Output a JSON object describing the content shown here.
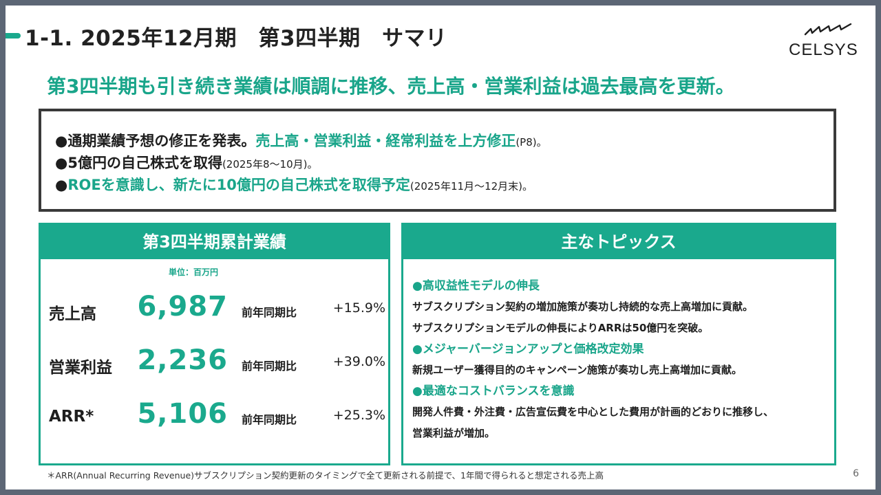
{
  "header": {
    "title": "1-1. 2025年12月期　第3四半期　サマリ",
    "logo_text": "CELSYS"
  },
  "headline": "第3四半期も引き続き業績は順調に推移、売上高・営業利益は過去最高を更新。",
  "notices": [
    {
      "bullet": "●",
      "black": "通期業績予想の修正を発表。",
      "green": "売上高・営業利益・経常利益を上方修正",
      "small": "(P8)。"
    },
    {
      "bullet": "●",
      "black": "5億円の自己株式を取得",
      "green": "",
      "small": "(2025年8～10月)。"
    },
    {
      "bullet": "●",
      "black": "",
      "green": "ROEを意識し、新たに10億円の自己株式を取得予定",
      "small": "(2025年11月～12月末)。"
    }
  ],
  "results": {
    "header": "第3四半期累計業績",
    "unit": "単位：百万円",
    "metrics": [
      {
        "label": "売上高",
        "value": "6,987",
        "comparison": "前年同期比",
        "change": "+15.9%"
      },
      {
        "label": "営業利益",
        "value": "2,236",
        "comparison": "前年同期比",
        "change": "+39.0%"
      },
      {
        "label": "ARR*",
        "value": "5,106",
        "comparison": "前年同期比",
        "change": "+25.3%"
      }
    ]
  },
  "topics": {
    "header": "主なトピックス",
    "items": [
      {
        "title": "●高収益性モデルの伸長",
        "lines": [
          "サブスクリプション契約の増加施策が奏功し持続的な売上高増加に貢献。",
          "サブスクリプションモデルの伸長によりARRは50億円を突破。"
        ]
      },
      {
        "title": "●メジャーバージョンアップと価格改定効果",
        "lines": [
          "新規ユーザー獲得目的のキャンペーン施策が奏功し売上高増加に貢献。"
        ]
      },
      {
        "title": "●最適なコストバランスを意識",
        "lines": [
          "開発人件費・外注費・広告宣伝費を中心とした費用が計画的どおりに推移し、",
          "営業利益が増加。"
        ]
      }
    ]
  },
  "footnote": "＊ARR(Annual Recurring Revenue)サブスクリプション契約更新のタイミングで全て更新される前提で、1年間で得られると想定される売上高",
  "page_number": "6",
  "colors": {
    "accent": "#1aa98d",
    "frame": "#5c6675",
    "text": "#1e1e1e"
  }
}
